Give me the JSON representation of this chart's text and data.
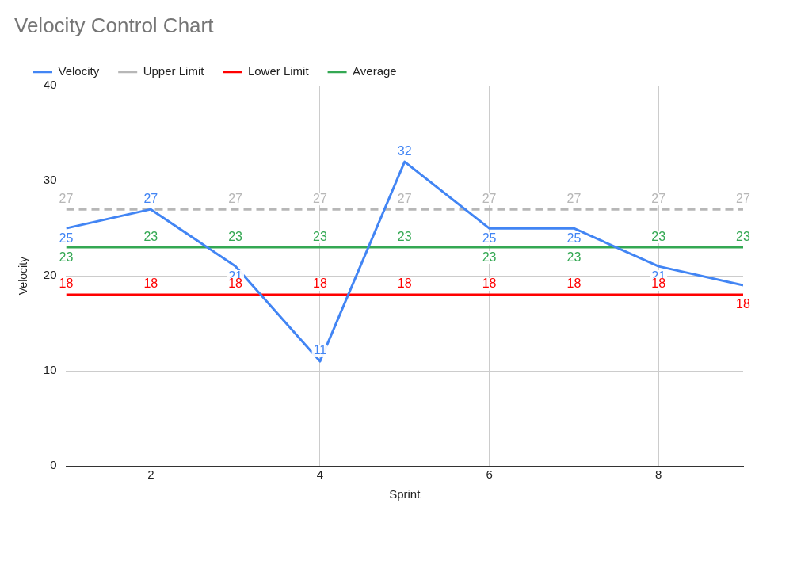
{
  "chart_data": {
    "type": "line",
    "title": "Velocity Control Chart",
    "xlabel": "Sprint",
    "ylabel": "Velocity",
    "x": [
      1,
      2,
      3,
      4,
      5,
      6,
      7,
      8,
      9
    ],
    "series": [
      {
        "name": "Velocity",
        "color": "#4285f4",
        "values": [
          25,
          27,
          21,
          11,
          32,
          25,
          25,
          21,
          19
        ],
        "value_labels": [
          "25",
          "27",
          "21",
          "11",
          "32",
          "25",
          "25",
          "21",
          null
        ]
      },
      {
        "name": "Upper Limit",
        "color": "#b7b7b7",
        "line_style": "dashed",
        "values": [
          27,
          27,
          27,
          27,
          27,
          27,
          27,
          27,
          27
        ],
        "value_labels": [
          "27",
          null,
          "27",
          "27",
          "27",
          "27",
          "27",
          "27",
          "27"
        ]
      },
      {
        "name": "Lower Limit",
        "color": "#ff0000",
        "values": [
          18,
          18,
          18,
          18,
          18,
          18,
          18,
          18,
          18
        ]
      },
      {
        "name": "Average",
        "color": "#34a853",
        "values": [
          23,
          23,
          23,
          23,
          23,
          23,
          23,
          23,
          23
        ]
      }
    ],
    "data_labels": true,
    "xlim": [
      1,
      9
    ],
    "xticks": [
      2,
      4,
      6,
      8
    ],
    "ylim": [
      0,
      40
    ],
    "yticks": [
      0,
      10,
      20,
      30,
      40
    ],
    "grid": true,
    "legend": "top",
    "marker": "none"
  }
}
